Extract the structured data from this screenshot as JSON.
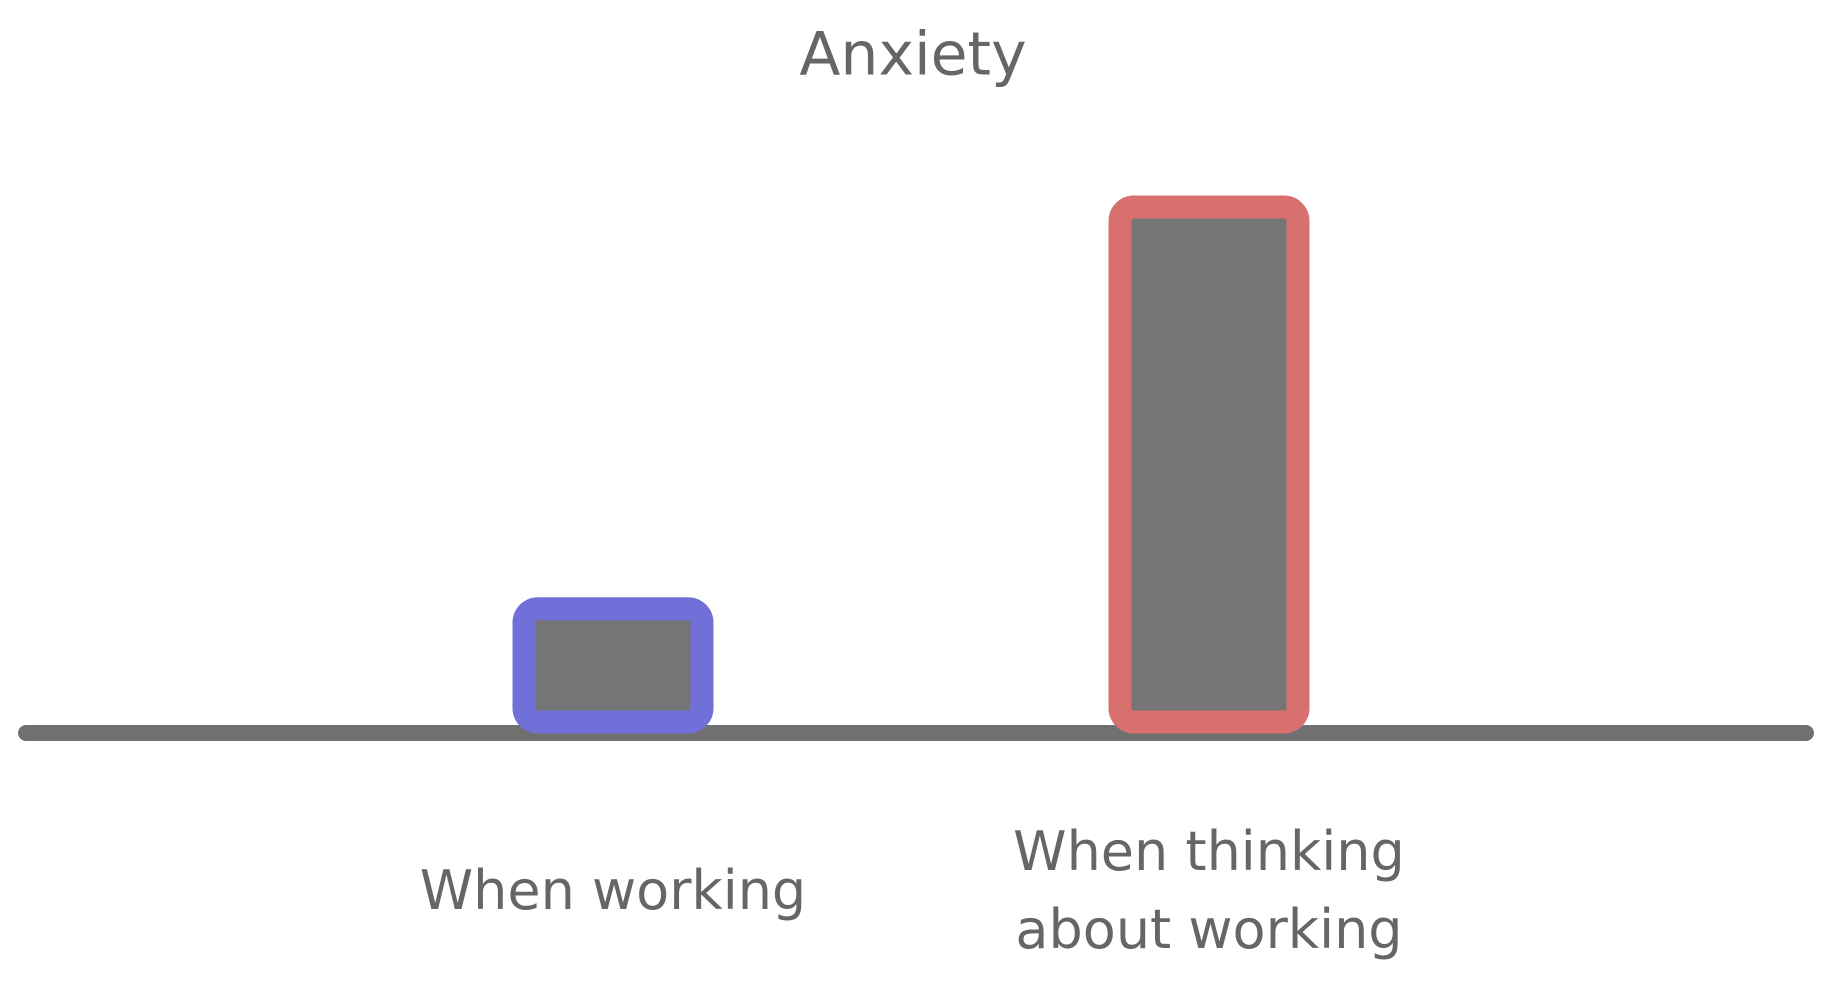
{
  "chart_data": {
    "type": "bar",
    "title": "Anxiety",
    "categories": [
      "When working",
      "When thinking about working"
    ],
    "values": [
      22,
      100
    ],
    "colors": [
      "#7070d8",
      "#d87070"
    ],
    "ylim": [
      0,
      100
    ]
  }
}
